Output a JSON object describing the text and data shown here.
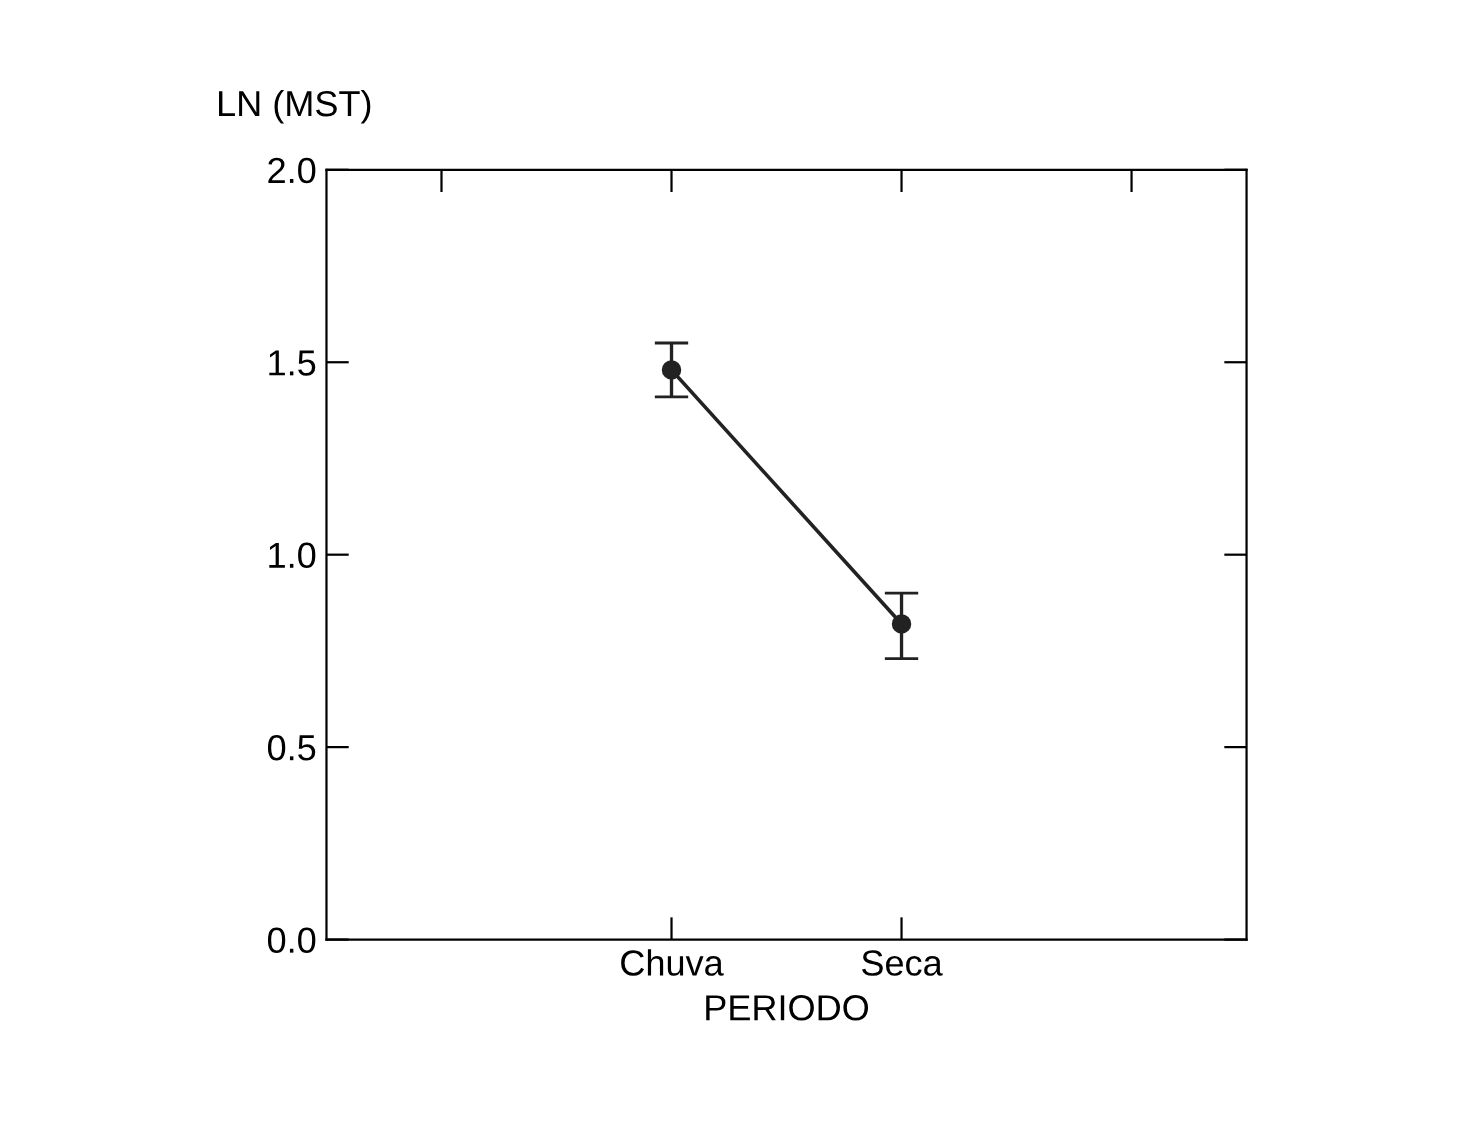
{
  "chart_data": {
    "type": "line",
    "ylabel": "LN (MST)",
    "xlabel": "PERIODO",
    "categories": [
      null,
      "Chuva",
      "Seca",
      null
    ],
    "series": [
      {
        "color": "#222222",
        "values": [
          null,
          1.48,
          0.82,
          null
        ],
        "errors": [
          null,
          [
            1.41,
            1.55
          ],
          [
            0.73,
            0.9
          ],
          null
        ]
      }
    ],
    "ylim": [
      0,
      2
    ],
    "yticks": [
      {
        "value": 0,
        "label": "0.0"
      },
      {
        "value": 0.5,
        "label": "0.5"
      },
      {
        "value": 1,
        "label": "1.0"
      },
      {
        "value": 1.5,
        "label": "1.5"
      },
      {
        "value": 2,
        "label": "2.0"
      }
    ],
    "marker": "circle",
    "line_style": "solid",
    "grid": false
  }
}
